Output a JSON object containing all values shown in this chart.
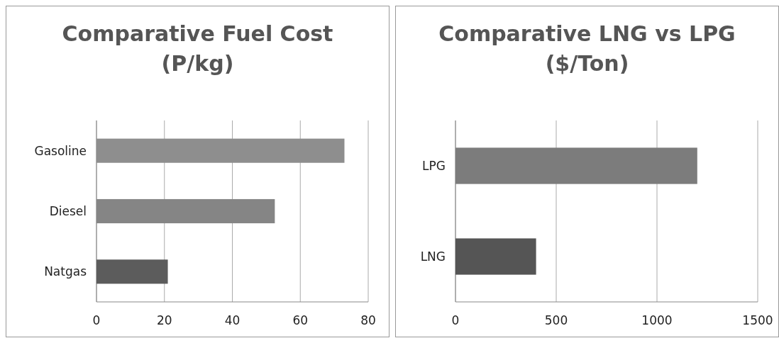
{
  "chart_data": [
    {
      "type": "bar",
      "orientation": "horizontal",
      "title": "Comparative Fuel Cost (P/kg)",
      "categories": [
        "Gasoline",
        "Diesel",
        "Natgas"
      ],
      "values": [
        73,
        52.5,
        21
      ],
      "colors": [
        "#8e8e8e",
        "#858585",
        "#5c5c5c"
      ],
      "xlim": [
        0,
        80
      ],
      "xticks": [
        0,
        20,
        40,
        60,
        80
      ],
      "grid": "x"
    },
    {
      "type": "bar",
      "orientation": "horizontal",
      "title": "Comparative LNG vs LPG ($/Ton)",
      "categories": [
        "LPG",
        "LNG"
      ],
      "values": [
        1200,
        400
      ],
      "colors": [
        "#7c7c7c",
        "#555555"
      ],
      "xlim": [
        0,
        1500
      ],
      "xticks": [
        0,
        500,
        1000,
        1500
      ],
      "grid": "x"
    }
  ]
}
